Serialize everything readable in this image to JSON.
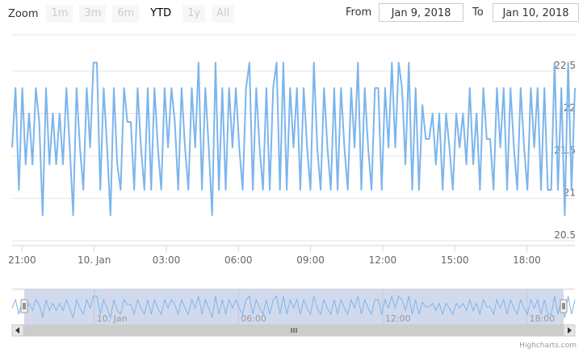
{
  "zoom": {
    "label": "Zoom",
    "buttons": [
      {
        "label": "1m",
        "active": false
      },
      {
        "label": "3m",
        "active": false
      },
      {
        "label": "6m",
        "active": false
      },
      {
        "label": "YTD",
        "active": true
      },
      {
        "label": "1y",
        "active": false
      },
      {
        "label": "All",
        "active": false
      }
    ]
  },
  "range": {
    "from_label": "From",
    "from_value": "Jan 9, 2018",
    "to_label": "To",
    "to_value": "Jan 10, 2018"
  },
  "credits": "Highcharts.com",
  "icons": {
    "left_arrow": "scroll-left-icon",
    "right_arrow": "scroll-right-icon",
    "grip": "scrollbar-grip-icon"
  },
  "colors": {
    "series": "#7cb5ec",
    "grid": "#e6e6e6",
    "navigator_mask": "rgba(102,133,194,0.3)"
  },
  "chart_data": {
    "type": "line",
    "title": "",
    "xlabel": "",
    "ylabel": "",
    "x_range": [
      "Jan 9, 20:35",
      "Jan 10, 20:00"
    ],
    "ylim": [
      20.5,
      22.5
    ],
    "y_ticks": [
      {
        "value": 22.5,
        "label": "22.5"
      },
      {
        "value": 22,
        "label": "22"
      },
      {
        "value": 21.5,
        "label": "21.5"
      },
      {
        "value": 21,
        "label": "21"
      },
      {
        "value": 20.5,
        "label": "20.5"
      }
    ],
    "x_ticks": [
      {
        "time": "Jan 9, 21:00",
        "label": "21:00"
      },
      {
        "time": "Jan 10, 00:00",
        "label": "10. Jan"
      },
      {
        "time": "Jan 10, 03:00",
        "label": "03:00"
      },
      {
        "time": "Jan 10, 06:00",
        "label": "06:00"
      },
      {
        "time": "Jan 10, 09:00",
        "label": "09:00"
      },
      {
        "time": "Jan 10, 12:00",
        "label": "12:00"
      },
      {
        "time": "Jan 10, 15:00",
        "label": "15:00"
      },
      {
        "time": "Jan 10, 18:00",
        "label": "18:00"
      }
    ],
    "navigator_ticks": [
      {
        "time": "Jan 10, 00:00",
        "label": "10. Jan"
      },
      {
        "time": "Jan 10, 06:00",
        "label": "06:00"
      },
      {
        "time": "Jan 10, 12:00",
        "label": "12:00"
      },
      {
        "time": "Jan 10, 18:00",
        "label": "18:00"
      }
    ],
    "grid": true,
    "legend": "none",
    "series": [
      {
        "values": [
          21.6,
          22.3,
          21.1,
          22.3,
          21.4,
          22.0,
          21.4,
          22.3,
          21.9,
          20.8,
          22.3,
          21.4,
          22.0,
          21.4,
          22.0,
          21.4,
          22.3,
          21.6,
          20.8,
          22.3,
          21.6,
          21.1,
          22.3,
          21.6,
          22.6,
          22.6,
          21.1,
          22.3,
          21.6,
          20.8,
          22.3,
          21.4,
          21.1,
          22.3,
          21.9,
          21.9,
          21.1,
          22.3,
          21.6,
          21.1,
          22.3,
          21.1,
          22.3,
          21.6,
          21.1,
          22.3,
          21.6,
          22.3,
          21.9,
          21.1,
          22.3,
          21.6,
          21.1,
          22.3,
          21.6,
          22.6,
          21.1,
          22.3,
          21.6,
          20.8,
          22.6,
          21.1,
          22.3,
          21.1,
          22.3,
          21.6,
          22.3,
          21.6,
          21.1,
          22.3,
          22.6,
          21.1,
          22.3,
          21.6,
          21.1,
          22.3,
          21.1,
          22.3,
          22.6,
          21.1,
          22.6,
          21.1,
          22.3,
          21.6,
          22.3,
          21.1,
          22.3,
          21.6,
          21.1,
          22.6,
          21.6,
          21.1,
          22.3,
          21.6,
          21.1,
          22.3,
          21.1,
          22.3,
          21.6,
          21.1,
          22.3,
          21.6,
          22.6,
          21.1,
          22.3,
          21.6,
          21.1,
          22.3,
          22.3,
          21.1,
          22.3,
          21.6,
          22.6,
          21.6,
          22.6,
          22.3,
          21.4,
          22.6,
          21.1,
          22.3,
          21.1,
          22.1,
          21.7,
          21.7,
          22.0,
          21.4,
          22.0,
          21.1,
          22.0,
          21.6,
          21.1,
          22.0,
          21.6,
          22.0,
          21.4,
          22.3,
          21.4,
          22.0,
          21.1,
          22.3,
          21.7,
          21.7,
          21.1,
          22.3,
          21.6,
          22.3,
          21.1,
          22.3,
          21.6,
          21.1,
          22.3,
          21.6,
          21.1,
          22.3,
          21.6,
          22.3,
          21.1,
          22.3,
          21.1,
          21.1,
          22.6,
          21.1,
          22.3,
          20.8,
          22.6,
          21.1,
          22.3
        ]
      }
    ],
    "navigator_range": [
      "Jan 9, 20:35",
      "Jan 10, 20:00"
    ]
  }
}
